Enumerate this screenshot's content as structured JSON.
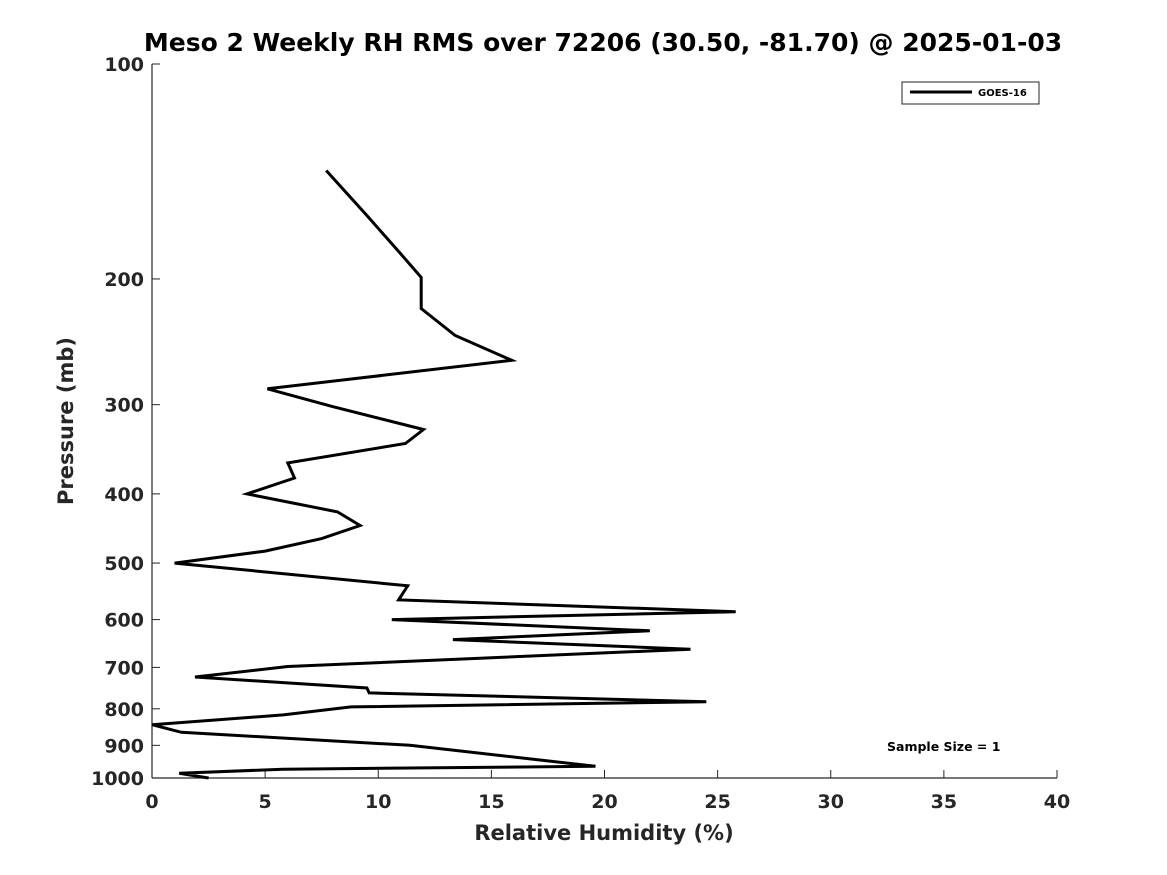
{
  "chart_data": {
    "type": "line",
    "title": "Meso 2 Weekly RH RMS over 72206 (30.50, -81.70) @ 2025-01-03",
    "xlabel": "Relative Humidity (%)",
    "ylabel": "Pressure (mb)",
    "xlim": [
      0,
      40
    ],
    "ylim": [
      100,
      1000
    ],
    "y_scale": "log",
    "y_reversed": true,
    "grid": false,
    "x_ticks": [
      0,
      5,
      10,
      15,
      20,
      25,
      30,
      35,
      40
    ],
    "y_ticks": [
      100,
      200,
      300,
      400,
      500,
      600,
      700,
      800,
      900,
      1000
    ],
    "legend": {
      "placement": "top-right",
      "entries": [
        "GOES-16"
      ]
    },
    "annotation": "Sample Size = 1",
    "series": [
      {
        "name": "GOES-16",
        "color": "#000000",
        "points": [
          [
            7.7,
            141
          ],
          [
            9.5,
            163
          ],
          [
            10.9,
            183
          ],
          [
            11.9,
            199
          ],
          [
            11.9,
            200
          ],
          [
            11.9,
            220
          ],
          [
            13.4,
            240
          ],
          [
            15.9,
            260
          ],
          [
            5.1,
            285
          ],
          [
            8.0,
            302
          ],
          [
            12.0,
            325
          ],
          [
            11.2,
            340
          ],
          [
            6.0,
            362
          ],
          [
            6.3,
            380
          ],
          [
            4.2,
            400
          ],
          [
            8.2,
            424
          ],
          [
            9.2,
            443
          ],
          [
            7.5,
            462
          ],
          [
            5.0,
            481
          ],
          [
            1.0,
            500
          ],
          [
            11.3,
            538
          ],
          [
            10.9,
            563
          ],
          [
            25.8,
            585
          ],
          [
            10.6,
            600
          ],
          [
            22.0,
            622
          ],
          [
            13.3,
            640
          ],
          [
            23.8,
            660
          ],
          [
            6.0,
            698
          ],
          [
            1.9,
            722
          ],
          [
            9.5,
            748
          ],
          [
            9.6,
            760
          ],
          [
            24.5,
            782
          ],
          [
            8.8,
            795
          ],
          [
            5.8,
            816
          ],
          [
            0,
            842
          ],
          [
            1.3,
            863
          ],
          [
            11.4,
            900
          ],
          [
            19.6,
            963
          ],
          [
            5.8,
            972
          ],
          [
            1.2,
            985
          ],
          [
            2.5,
            1000
          ]
        ]
      }
    ]
  }
}
